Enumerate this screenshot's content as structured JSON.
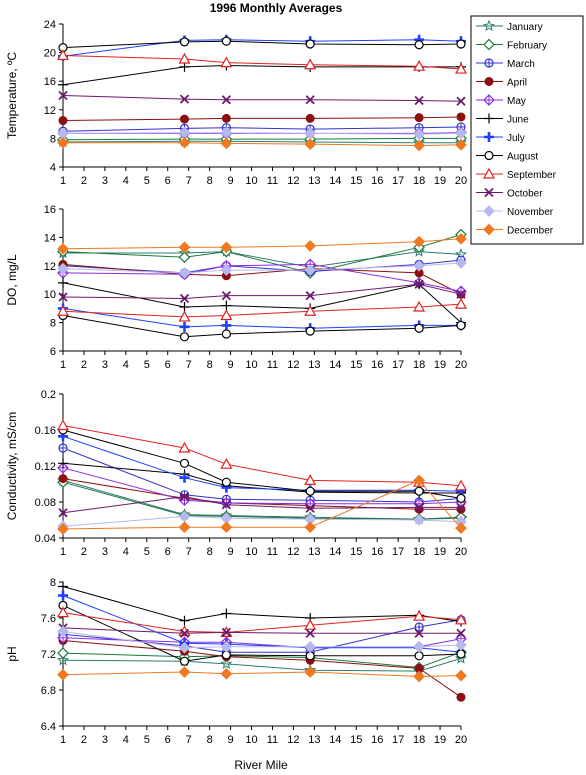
{
  "chart_data": {
    "type": "line",
    "title": "1996 Monthly Averages",
    "xlabel": "River Mile",
    "x_ticks": [
      1,
      2,
      3,
      4,
      5,
      6,
      7,
      8,
      9,
      10,
      11,
      12,
      13,
      14,
      15,
      16,
      17,
      18,
      19,
      20
    ],
    "x": [
      1,
      6.8,
      8.8,
      12.8,
      18,
      20
    ],
    "xlim": [
      1,
      20
    ],
    "legend_position": "top-right",
    "legend": [
      {
        "name": "January",
        "color": "#2e7d6e",
        "marker": "star"
      },
      {
        "name": "February",
        "color": "#1a7a3a",
        "marker": "diamond-open"
      },
      {
        "name": "March",
        "color": "#3333cc",
        "marker": "circle-cross"
      },
      {
        "name": "April",
        "color": "#8b1010",
        "marker": "circle-filled"
      },
      {
        "name": "May",
        "color": "#8a2be2",
        "marker": "diamond-cross"
      },
      {
        "name": "June",
        "color": "#000000",
        "marker": "plus"
      },
      {
        "name": "July",
        "color": "#1f3fff",
        "marker": "plus-bold"
      },
      {
        "name": "August",
        "color": "#000000",
        "marker": "circle-open"
      },
      {
        "name": "September",
        "color": "#e02020",
        "marker": "triangle-open"
      },
      {
        "name": "October",
        "color": "#6b1a6b",
        "marker": "x"
      },
      {
        "name": "November",
        "color": "#b8b8f0",
        "marker": "diamond-filled"
      },
      {
        "name": "December",
        "color": "#f07820",
        "marker": "diamond-filled"
      }
    ],
    "panels": [
      {
        "ylabel": "Temperature, ºC",
        "ylim": [
          4,
          24
        ],
        "yticks": [
          4,
          8,
          12,
          16,
          20,
          24
        ],
        "series": [
          {
            "name": "January",
            "values": [
              7.5,
              7.6,
              7.6,
              7.5,
              7.4,
              7.4
            ]
          },
          {
            "name": "February",
            "values": [
              7.8,
              7.9,
              7.9,
              7.9,
              8.0,
              8.0
            ]
          },
          {
            "name": "March",
            "values": [
              9.0,
              9.4,
              9.5,
              9.3,
              9.5,
              9.6
            ]
          },
          {
            "name": "April",
            "values": [
              10.5,
              10.7,
              10.8,
              10.8,
              10.9,
              11.0
            ]
          },
          {
            "name": "May",
            "values": [
              8.7,
              8.7,
              8.7,
              8.7,
              8.7,
              8.8
            ]
          },
          {
            "name": "June",
            "values": [
              15.5,
              18.0,
              18.2,
              18.0,
              18.0,
              18.0
            ]
          },
          {
            "name": "July",
            "values": [
              19.5,
              21.7,
              21.8,
              21.6,
              21.8,
              21.6
            ]
          },
          {
            "name": "August",
            "values": [
              20.7,
              21.5,
              21.6,
              21.2,
              21.1,
              21.2
            ]
          },
          {
            "name": "September",
            "values": [
              19.6,
              19.1,
              18.6,
              18.3,
              18.1,
              17.7
            ]
          },
          {
            "name": "October",
            "values": [
              14.0,
              13.5,
              13.4,
              13.4,
              13.3,
              13.2
            ]
          },
          {
            "name": "November",
            "values": [
              8.7,
              8.8,
              8.8,
              8.7,
              8.6,
              8.7
            ]
          },
          {
            "name": "December",
            "values": [
              7.4,
              7.4,
              7.3,
              7.2,
              7.0,
              7.1
            ]
          }
        ]
      },
      {
        "ylabel": "DO, mg/L",
        "ylim": [
          6,
          16
        ],
        "yticks": [
          6,
          8,
          10,
          12,
          14,
          16
        ],
        "series": [
          {
            "name": "January",
            "values": [
              12.9,
              12.9,
              13.0,
              11.9,
              13.0,
              12.8
            ]
          },
          {
            "name": "February",
            "values": [
              13.0,
              12.6,
              13.0,
              11.5,
              13.3,
              14.2
            ]
          },
          {
            "name": "March",
            "values": [
              12.0,
              11.5,
              12.0,
              11.6,
              12.1,
              12.4
            ]
          },
          {
            "name": "April",
            "values": [
              12.1,
              11.4,
              11.3,
              11.8,
              11.5,
              10.0
            ]
          },
          {
            "name": "May",
            "values": [
              11.5,
              11.4,
              12.0,
              12.1,
              10.8,
              10.2
            ]
          },
          {
            "name": "June",
            "values": [
              10.8,
              9.1,
              9.2,
              9.0,
              10.7,
              8.0
            ]
          },
          {
            "name": "July",
            "values": [
              9.0,
              7.7,
              7.8,
              7.6,
              7.8,
              7.8
            ]
          },
          {
            "name": "August",
            "values": [
              8.5,
              7.0,
              7.2,
              7.4,
              7.6,
              7.8
            ]
          },
          {
            "name": "September",
            "values": [
              8.8,
              8.4,
              8.5,
              8.8,
              9.1,
              9.3
            ]
          },
          {
            "name": "October",
            "values": [
              9.8,
              9.7,
              9.9,
              9.9,
              10.7,
              10.0
            ]
          },
          {
            "name": "November",
            "values": [
              11.8,
              11.5,
              11.7,
              11.7,
              12.0,
              12.2
            ]
          },
          {
            "name": "December",
            "values": [
              13.2,
              13.3,
              13.3,
              13.4,
              13.7,
              13.9
            ]
          }
        ]
      },
      {
        "ylabel": "Conductivity, mS/cm",
        "ylim": [
          0.04,
          0.2
        ],
        "yticks": [
          0.04,
          0.08,
          0.12,
          0.16,
          0.2
        ],
        "series": [
          {
            "name": "January",
            "values": [
              0.104,
              0.066,
              0.065,
              0.063,
              0.061,
              0.062
            ]
          },
          {
            "name": "February",
            "values": [
              0.102,
              0.065,
              0.064,
              0.062,
              0.061,
              0.063
            ]
          },
          {
            "name": "March",
            "values": [
              0.14,
              0.088,
              0.083,
              0.082,
              0.08,
              0.084
            ]
          },
          {
            "name": "April",
            "values": [
              0.106,
              0.084,
              0.079,
              0.076,
              0.072,
              0.072
            ]
          },
          {
            "name": "May",
            "values": [
              0.118,
              0.082,
              0.079,
              0.078,
              0.078,
              0.08
            ]
          },
          {
            "name": "June",
            "values": [
              0.123,
              0.111,
              0.098,
              0.091,
              0.09,
              0.09
            ]
          },
          {
            "name": "July",
            "values": [
              0.153,
              0.107,
              0.096,
              0.093,
              0.093,
              0.092
            ]
          },
          {
            "name": "August",
            "values": [
              0.16,
              0.123,
              0.102,
              0.092,
              0.092,
              0.084
            ]
          },
          {
            "name": "September",
            "values": [
              0.165,
              0.14,
              0.122,
              0.104,
              0.102,
              0.098
            ]
          },
          {
            "name": "October",
            "values": [
              0.068,
              0.086,
              0.077,
              0.073,
              0.074,
              0.074
            ]
          },
          {
            "name": "November",
            "values": [
              0.053,
              0.064,
              0.062,
              0.061,
              0.06,
              0.058
            ]
          },
          {
            "name": "December",
            "values": [
              0.05,
              0.052,
              0.052,
              0.052,
              0.104,
              0.051
            ]
          }
        ]
      },
      {
        "ylabel": "pH",
        "ylim": [
          6.4,
          8
        ],
        "yticks": [
          6.4,
          6.8,
          7.2,
          7.6,
          8
        ],
        "series": [
          {
            "name": "January",
            "values": [
              7.13,
              7.12,
              7.09,
              7.02,
              7.01,
              7.15
            ]
          },
          {
            "name": "February",
            "values": [
              7.21,
              7.17,
              7.18,
              7.16,
              7.05,
              7.22
            ]
          },
          {
            "name": "March",
            "values": [
              7.42,
              7.29,
              7.22,
              7.22,
              7.5,
              7.58
            ]
          },
          {
            "name": "April",
            "values": [
              7.35,
              7.23,
              7.17,
              7.13,
              7.04,
              6.72
            ]
          },
          {
            "name": "May",
            "values": [
              7.38,
              7.33,
              7.33,
              7.27,
              7.28,
              7.37
            ]
          },
          {
            "name": "June",
            "values": [
              7.95,
              7.57,
              7.65,
              7.6,
              7.63,
              7.56
            ]
          },
          {
            "name": "July",
            "values": [
              7.85,
              7.32,
              7.31,
              7.27,
              7.27,
              7.22
            ]
          },
          {
            "name": "August",
            "values": [
              7.74,
              7.12,
              7.19,
              7.18,
              7.18,
              7.2
            ]
          },
          {
            "name": "September",
            "values": [
              7.66,
              7.45,
              7.44,
              7.52,
              7.62,
              7.58
            ]
          },
          {
            "name": "October",
            "values": [
              7.49,
              7.43,
              7.44,
              7.43,
              7.43,
              7.43
            ]
          },
          {
            "name": "November",
            "values": [
              7.45,
              7.27,
              7.28,
              7.28,
              7.28,
              7.3
            ]
          },
          {
            "name": "December",
            "values": [
              6.97,
              7.0,
              6.98,
              7.0,
              6.95,
              6.96
            ]
          }
        ]
      }
    ]
  }
}
